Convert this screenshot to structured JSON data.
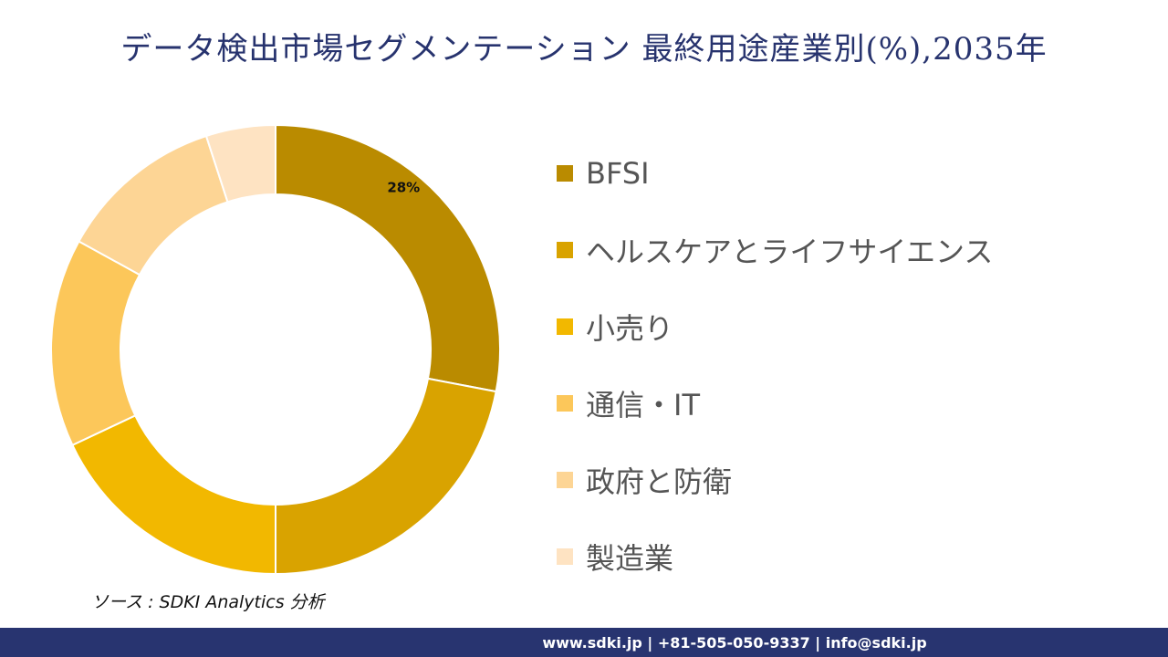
{
  "title": "データ検出市場セグメンテーション 最終用途産業別(%),2035年",
  "source": "ソース : SDKI Analytics 分析",
  "footer": "www.sdki.jp | +81-505-050-9337 | info@sdki.jp",
  "chart_data": {
    "type": "pie",
    "variant": "donut",
    "title": "データ検出市場セグメンテーション 最終用途産業別(%),2035年",
    "categories": [
      "BFSI",
      "ヘルスケアとライフサイエンス",
      "小売り",
      "通信・IT",
      "政府と防衛",
      "製造業"
    ],
    "values": [
      28,
      22,
      18,
      15,
      12,
      5
    ],
    "data_labels": [
      "28%",
      "",
      "",
      "",
      "",
      ""
    ],
    "colors": [
      "#BA8B00",
      "#D9A300",
      "#F2B800",
      "#FCC75A",
      "#FDD595",
      "#FEE3C2"
    ],
    "legend_position": "right"
  }
}
